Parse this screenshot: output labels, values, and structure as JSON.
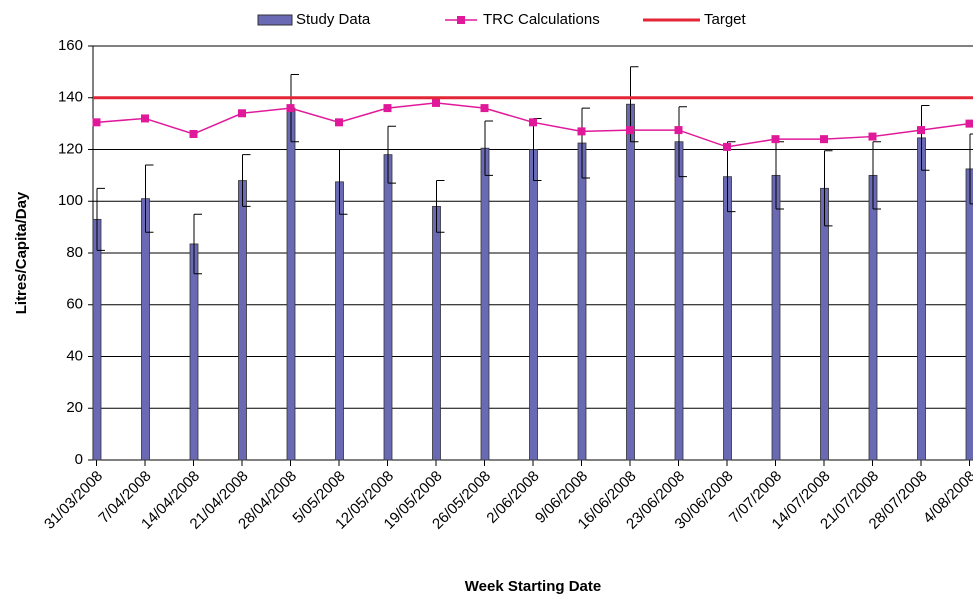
{
  "chart_data": {
    "type": "bar",
    "xlabel": "Week Starting Date",
    "ylabel": "Litres/Capita/Day",
    "categories": [
      "31/03/2008",
      "7/04/2008",
      "14/04/2008",
      "21/04/2008",
      "28/04/2008",
      "5/05/2008",
      "12/05/2008",
      "19/05/2008",
      "26/05/2008",
      "2/06/2008",
      "9/06/2008",
      "16/06/2008",
      "23/06/2008",
      "30/06/2008",
      "7/07/2008",
      "14/07/2008",
      "21/07/2008",
      "28/07/2008",
      "4/08/2008"
    ],
    "series": [
      {
        "name": "Study Data",
        "type": "bar",
        "color": "#6a6ab4",
        "values": [
          93,
          101,
          83.5,
          108,
          136,
          107.5,
          118,
          98,
          120.5,
          120,
          122.5,
          137.5,
          123,
          109.5,
          110,
          105,
          110,
          124.5,
          112.5
        ],
        "errors": [
          12,
          13,
          11.5,
          10,
          13,
          12.5,
          11,
          10,
          10.5,
          12,
          13.5,
          14.5,
          13.5,
          13.5,
          13,
          14.5,
          13,
          12.5,
          13.5
        ]
      },
      {
        "name": "TRC Calculations",
        "type": "line",
        "color": "#e0199a",
        "values": [
          130.5,
          132,
          126,
          134,
          136,
          130.5,
          136,
          138,
          136,
          130.5,
          127,
          127.5,
          127.5,
          121,
          124,
          124,
          125,
          127.5,
          130
        ]
      },
      {
        "name": "Target",
        "type": "hline",
        "color": "#e32636",
        "value": 140
      }
    ],
    "ylim": [
      0,
      160
    ],
    "yticks": [
      0,
      20,
      40,
      60,
      80,
      100,
      120,
      140,
      160
    ],
    "grid": true,
    "legend": "top"
  }
}
